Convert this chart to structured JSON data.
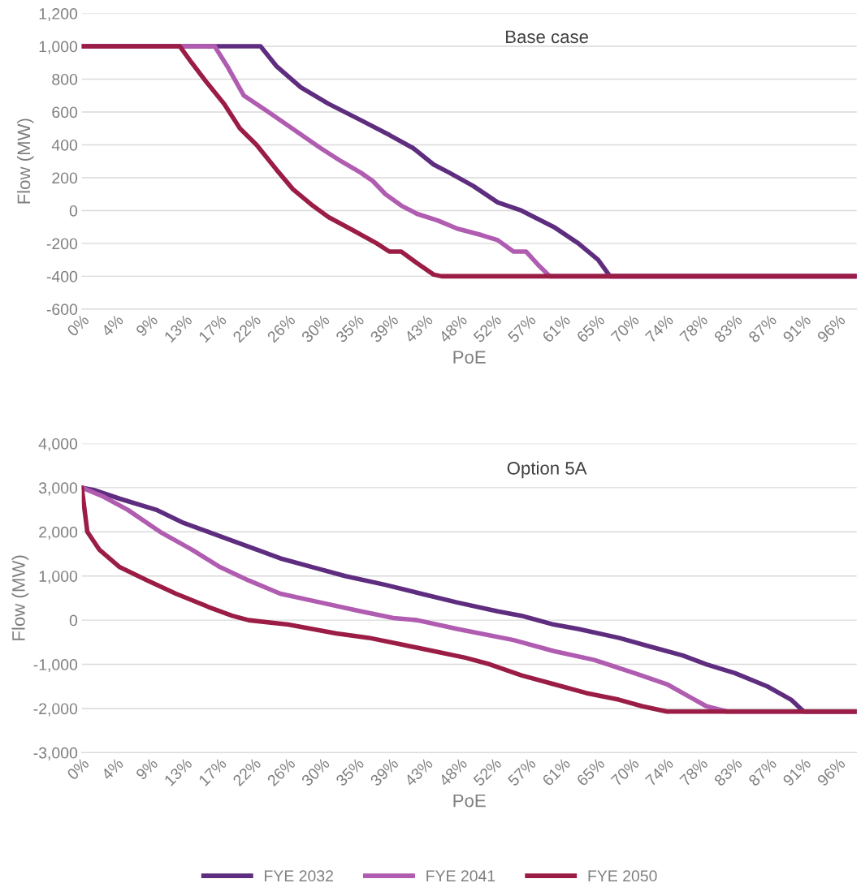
{
  "chart_data": [
    {
      "type": "line",
      "title": "Base case",
      "xlabel": "PoE",
      "ylabel": "Flow (MW)",
      "xlim": [
        0,
        98
      ],
      "ylim": [
        -600,
        1200
      ],
      "yticks": [
        {
          "value": -600,
          "label": "-600"
        },
        {
          "value": -400,
          "label": "-400"
        },
        {
          "value": -200,
          "label": "-200"
        },
        0,
        200,
        400,
        600,
        800,
        {
          "value": 1000,
          "label": "1,000"
        },
        {
          "value": 1200,
          "label": "1,200"
        }
      ],
      "xticks": [
        {
          "value": 0,
          "label": "0%"
        },
        {
          "value": 4.35,
          "label": "4%"
        },
        {
          "value": 8.7,
          "label": "9%"
        },
        {
          "value": 13.04,
          "label": "13%"
        },
        {
          "value": 17.39,
          "label": "17%"
        },
        {
          "value": 21.74,
          "label": "22%"
        },
        {
          "value": 26.09,
          "label": "26%"
        },
        {
          "value": 30.43,
          "label": "30%"
        },
        {
          "value": 34.78,
          "label": "35%"
        },
        {
          "value": 39.13,
          "label": "39%"
        },
        {
          "value": 43.48,
          "label": "43%"
        },
        {
          "value": 47.83,
          "label": "48%"
        },
        {
          "value": 52.17,
          "label": "52%"
        },
        {
          "value": 56.52,
          "label": "57%"
        },
        {
          "value": 60.87,
          "label": "61%"
        },
        {
          "value": 65.22,
          "label": "65%"
        },
        {
          "value": 69.57,
          "label": "70%"
        },
        {
          "value": 73.91,
          "label": "74%"
        },
        {
          "value": 78.26,
          "label": "78%"
        },
        {
          "value": 82.61,
          "label": "83%"
        },
        {
          "value": 86.96,
          "label": "87%"
        },
        {
          "value": 91.3,
          "label": "91%"
        },
        {
          "value": 95.65,
          "label": "96%"
        }
      ],
      "grid": "y",
      "line_style": "solid",
      "marker": "none",
      "series": [
        {
          "color": "#5f2d7f",
          "x": [
            0,
            22.6,
            24.6,
            27.7,
            31.2,
            35.3,
            38.9,
            41.9,
            44.5,
            46.5,
            49.5,
            52.6,
            55.6,
            59.7,
            62.8,
            65.3,
            66.8,
            98
          ],
          "values": [
            1000,
            1000,
            880,
            750,
            650,
            550,
            460,
            380,
            280,
            230,
            150,
            50,
            0,
            -100,
            -200,
            -300,
            -400,
            -400
          ]
        },
        {
          "color": "#b05cb0",
          "x": [
            0,
            16.8,
            18.5,
            20.5,
            23.6,
            27.2,
            30.2,
            32.8,
            35.3,
            36.8,
            38.4,
            40.4,
            42.4,
            45.0,
            47.5,
            50.6,
            52.6,
            54.6,
            56.2,
            57.7,
            59.2,
            98
          ],
          "values": [
            1000,
            1000,
            870,
            700,
            600,
            480,
            380,
            300,
            230,
            180,
            100,
            30,
            -20,
            -60,
            -110,
            -150,
            -180,
            -250,
            -250,
            -330,
            -400,
            -400
          ]
        },
        {
          "color": "#9b1d45",
          "x": [
            0,
            12.4,
            13.9,
            15.8,
            18.0,
            20.0,
            22.1,
            24.6,
            26.7,
            29.2,
            31.2,
            34.3,
            37.3,
            38.9,
            40.4,
            42.4,
            44.5,
            45.5,
            98
          ],
          "values": [
            1000,
            1000,
            900,
            780,
            650,
            500,
            400,
            250,
            130,
            30,
            -40,
            -120,
            -200,
            -250,
            -250,
            -320,
            -390,
            -400,
            -400
          ]
        }
      ]
    },
    {
      "type": "line",
      "title": "Option 5A",
      "xlabel": "PoE",
      "ylabel": "Flow (MW)",
      "xlim": [
        0,
        98
      ],
      "ylim": [
        -3000,
        4000
      ],
      "yticks": [
        {
          "value": -3000,
          "label": "-3,000"
        },
        {
          "value": -2000,
          "label": "-2,000"
        },
        {
          "value": -1000,
          "label": "-1,000"
        },
        0,
        {
          "value": 1000,
          "label": "1,000"
        },
        {
          "value": 2000,
          "label": "2,000"
        },
        {
          "value": 3000,
          "label": "3,000"
        },
        {
          "value": 4000,
          "label": "4,000"
        }
      ],
      "xticks": [
        {
          "value": 0,
          "label": "0%"
        },
        {
          "value": 4.35,
          "label": "4%"
        },
        {
          "value": 8.7,
          "label": "9%"
        },
        {
          "value": 13.04,
          "label": "13%"
        },
        {
          "value": 17.39,
          "label": "17%"
        },
        {
          "value": 21.74,
          "label": "22%"
        },
        {
          "value": 26.09,
          "label": "26%"
        },
        {
          "value": 30.43,
          "label": "30%"
        },
        {
          "value": 34.78,
          "label": "35%"
        },
        {
          "value": 39.13,
          "label": "39%"
        },
        {
          "value": 43.48,
          "label": "43%"
        },
        {
          "value": 47.83,
          "label": "48%"
        },
        {
          "value": 52.17,
          "label": "52%"
        },
        {
          "value": 56.52,
          "label": "57%"
        },
        {
          "value": 60.87,
          "label": "61%"
        },
        {
          "value": 65.22,
          "label": "65%"
        },
        {
          "value": 69.57,
          "label": "70%"
        },
        {
          "value": 73.91,
          "label": "74%"
        },
        {
          "value": 78.26,
          "label": "78%"
        },
        {
          "value": 82.61,
          "label": "83%"
        },
        {
          "value": 86.96,
          "label": "87%"
        },
        {
          "value": 91.3,
          "label": "91%"
        },
        {
          "value": 95.65,
          "label": "96%"
        }
      ],
      "grid": "y",
      "legend": "bottom",
      "line_style": "solid",
      "marker": "none",
      "series": [
        {
          "name": "FYE 2032",
          "color": "#5f2d7f",
          "x": [
            0,
            1.5,
            4.8,
            9.4,
            12.9,
            16.0,
            19.0,
            22.1,
            25.1,
            29.2,
            33.3,
            38.4,
            42.9,
            47.5,
            52.6,
            55.6,
            59.7,
            62.8,
            67.9,
            71.9,
            76.0,
            79.0,
            82.6,
            86.7,
            89.7,
            91.3,
            98
          ],
          "values": [
            3000,
            2950,
            2750,
            2500,
            2200,
            2000,
            1800,
            1600,
            1400,
            1200,
            1000,
            800,
            600,
            400,
            200,
            100,
            -100,
            -200,
            -400,
            -600,
            -800,
            -1000,
            -1200,
            -1500,
            -1800,
            -2070,
            -2070
          ]
        },
        {
          "name": "FYE 2041",
          "color": "#b05cb0",
          "x": [
            0,
            2.7,
            5.8,
            9.9,
            13.9,
            17.5,
            21.1,
            25.1,
            30.2,
            35.3,
            39.4,
            42.4,
            47.5,
            54.6,
            59.7,
            64.8,
            69.9,
            74.0,
            77.0,
            79.0,
            81.6,
            98
          ],
          "values": [
            3000,
            2800,
            2500,
            2000,
            1600,
            1200,
            900,
            600,
            400,
            200,
            50,
            0,
            -200,
            -450,
            -700,
            -900,
            -1200,
            -1450,
            -1750,
            -1950,
            -2070,
            -2070
          ]
        },
        {
          "name": "FYE 2050",
          "color": "#9b1d45",
          "x": [
            0,
            0.7,
            2.2,
            4.8,
            8.3,
            11.9,
            16.0,
            19.0,
            21.1,
            26.1,
            32.2,
            36.3,
            40.4,
            44.5,
            48.5,
            51.6,
            55.6,
            59.7,
            63.8,
            67.9,
            70.9,
            74.0,
            98
          ],
          "values": [
            3000,
            2000,
            1600,
            1200,
            900,
            600,
            300,
            100,
            0,
            -100,
            -300,
            -400,
            -550,
            -700,
            -850,
            -1000,
            -1250,
            -1450,
            -1650,
            -1800,
            -1950,
            -2070,
            -2070
          ]
        }
      ]
    }
  ]
}
